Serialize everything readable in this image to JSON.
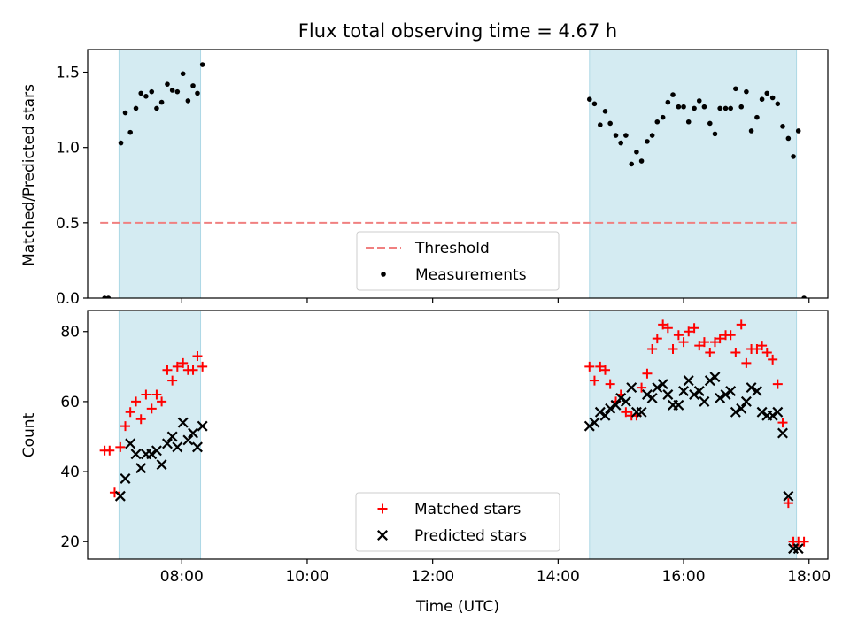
{
  "chart_data": [
    {
      "type": "scatter",
      "title": "Flux total observing time = 4.67 h",
      "xlabel": "",
      "ylabel": "Matched/Predicted stars",
      "x_unit": "hours UTC",
      "xlim": [
        6.5,
        18.3
      ],
      "ylim": [
        0,
        1.65
      ],
      "y_ticks": [
        0.0,
        0.5,
        1.0,
        1.5
      ],
      "y_tick_labels": [
        "0.0",
        "0.5",
        "1.0",
        "1.5"
      ],
      "x_ticks": [
        8,
        10,
        12,
        14,
        16,
        18
      ],
      "shaded_intervals": [
        [
          7.0,
          8.3
        ],
        [
          14.5,
          17.8
        ]
      ],
      "shade_color": "#add8e6",
      "threshold": {
        "name": "Threshold",
        "value": 0.5,
        "x_range": [
          6.7,
          17.8
        ],
        "color": "#f08080"
      },
      "legend": {
        "location": "lower center",
        "entries": [
          "Threshold",
          "Measurements"
        ]
      },
      "series": [
        {
          "name": "Measurements",
          "color": "#000000",
          "marker": "dot",
          "x": [
            6.77,
            6.83,
            7.03,
            7.1,
            7.18,
            7.27,
            7.35,
            7.43,
            7.52,
            7.6,
            7.68,
            7.77,
            7.85,
            7.93,
            8.02,
            8.1,
            8.18,
            8.25,
            8.33,
            14.5,
            14.58,
            14.67,
            14.75,
            14.83,
            14.92,
            15.0,
            15.08,
            15.17,
            15.25,
            15.33,
            15.42,
            15.5,
            15.58,
            15.67,
            15.75,
            15.83,
            15.92,
            16.0,
            16.08,
            16.17,
            16.25,
            16.33,
            16.42,
            16.5,
            16.58,
            16.67,
            16.75,
            16.83,
            16.92,
            17.0,
            17.08,
            17.17,
            17.25,
            17.33,
            17.42,
            17.5,
            17.58,
            17.67,
            17.75,
            17.83,
            17.92
          ],
          "y": [
            0.0,
            0.0,
            1.03,
            1.23,
            1.1,
            1.26,
            1.36,
            1.34,
            1.37,
            1.26,
            1.3,
            1.42,
            1.38,
            1.37,
            1.49,
            1.31,
            1.41,
            1.36,
            1.55,
            1.32,
            1.29,
            1.15,
            1.24,
            1.16,
            1.08,
            1.03,
            1.08,
            0.89,
            0.97,
            0.91,
            1.04,
            1.08,
            1.17,
            1.2,
            1.3,
            1.35,
            1.27,
            1.27,
            1.17,
            1.26,
            1.31,
            1.27,
            1.16,
            1.09,
            1.26,
            1.26,
            1.26,
            1.39,
            1.27,
            1.37,
            1.11,
            1.2,
            1.32,
            1.36,
            1.33,
            1.29,
            1.14,
            1.06,
            0.94,
            1.11,
            0.0
          ]
        }
      ]
    },
    {
      "type": "scatter",
      "title": "",
      "xlabel": "Time (UTC)",
      "ylabel": "Count",
      "x_unit": "hours UTC",
      "xlim": [
        6.5,
        18.3
      ],
      "ylim": [
        15,
        86
      ],
      "y_ticks": [
        20,
        40,
        60,
        80
      ],
      "y_tick_labels": [
        "20",
        "40",
        "60",
        "80"
      ],
      "x_ticks": [
        8,
        10,
        12,
        14,
        16,
        18
      ],
      "x_tick_labels": [
        "08:00",
        "10:00",
        "12:00",
        "14:00",
        "16:00",
        "18:00"
      ],
      "shaded_intervals": [
        [
          7.0,
          8.3
        ],
        [
          14.5,
          17.8
        ]
      ],
      "shade_color": "#add8e6",
      "legend": {
        "location": "lower center",
        "entries": [
          "Matched stars",
          "Predicted stars"
        ]
      },
      "series": [
        {
          "name": "Matched stars",
          "color": "#ff0000",
          "marker": "plus",
          "x": [
            6.77,
            6.85,
            6.93,
            7.02,
            7.1,
            7.18,
            7.27,
            7.35,
            7.43,
            7.52,
            7.6,
            7.68,
            7.77,
            7.85,
            7.93,
            8.02,
            8.1,
            8.18,
            8.25,
            8.33,
            14.5,
            14.58,
            14.67,
            14.75,
            14.83,
            14.92,
            15.0,
            15.08,
            15.17,
            15.25,
            15.33,
            15.42,
            15.5,
            15.58,
            15.67,
            15.75,
            15.83,
            15.92,
            16.0,
            16.08,
            16.17,
            16.25,
            16.33,
            16.42,
            16.5,
            16.58,
            16.67,
            16.75,
            16.83,
            16.92,
            17.0,
            17.08,
            17.17,
            17.25,
            17.33,
            17.42,
            17.5,
            17.58,
            17.67,
            17.75,
            17.83,
            17.92
          ],
          "y": [
            46,
            46,
            34,
            47,
            53,
            57,
            60,
            55,
            62,
            58,
            62,
            60,
            69,
            66,
            70,
            71,
            69,
            69,
            73,
            70,
            70,
            66,
            70,
            69,
            65,
            60,
            62,
            57,
            56,
            56,
            64,
            68,
            75,
            78,
            82,
            81,
            75,
            79,
            77,
            80,
            81,
            76,
            77,
            74,
            77,
            78,
            79,
            79,
            74,
            82,
            71,
            75,
            75,
            76,
            74,
            72,
            65,
            54,
            31,
            20,
            20,
            20
          ]
        },
        {
          "name": "Predicted stars",
          "color": "#000000",
          "marker": "x",
          "x": [
            7.02,
            7.1,
            7.18,
            7.27,
            7.35,
            7.43,
            7.52,
            7.6,
            7.68,
            7.77,
            7.85,
            7.93,
            8.02,
            8.1,
            8.18,
            8.25,
            8.33,
            14.5,
            14.58,
            14.67,
            14.75,
            14.83,
            14.92,
            15.0,
            15.08,
            15.17,
            15.25,
            15.33,
            15.42,
            15.5,
            15.58,
            15.67,
            15.75,
            15.83,
            15.92,
            16.0,
            16.08,
            16.17,
            16.25,
            16.33,
            16.42,
            16.5,
            16.58,
            16.67,
            16.75,
            16.83,
            16.92,
            17.0,
            17.08,
            17.17,
            17.25,
            17.33,
            17.42,
            17.5,
            17.58,
            17.67,
            17.75,
            17.83
          ],
          "y": [
            33,
            38,
            48,
            45,
            41,
            45,
            45,
            46,
            42,
            48,
            50,
            47,
            54,
            49,
            51,
            47,
            53,
            53,
            54,
            57,
            56,
            58,
            59,
            61,
            60,
            64,
            57,
            57,
            62,
            61,
            64,
            65,
            62,
            59,
            59,
            63,
            66,
            62,
            63,
            60,
            66,
            67,
            61,
            62,
            63,
            57,
            58,
            60,
            64,
            63,
            57,
            56,
            56,
            57,
            51,
            33,
            18,
            18
          ]
        }
      ]
    }
  ]
}
